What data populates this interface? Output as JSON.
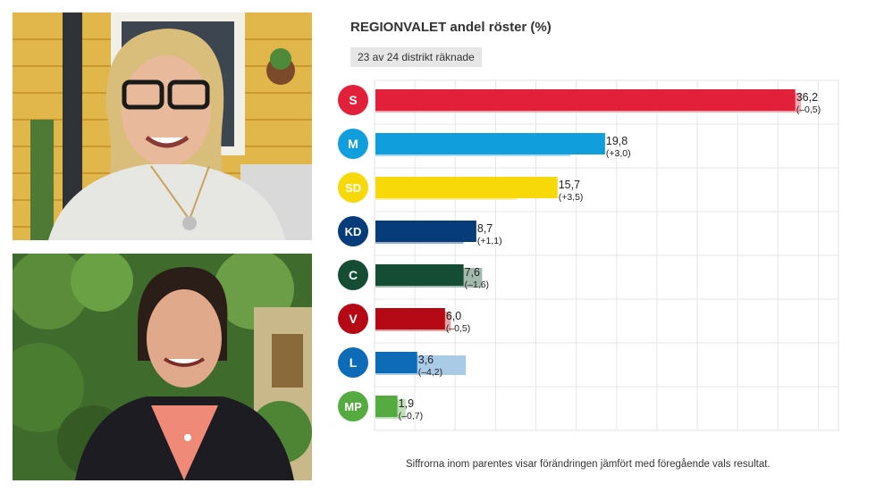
{
  "chart_data": {
    "type": "bar",
    "orientation": "horizontal",
    "title": "REGIONVALET andel röster (%)",
    "subtitle": "23 av 24 distrikt räknade",
    "footnote": "Siffrorna inom parentes visar förändringen jämfört med föregående vals resultat.",
    "xlim": [
      0,
      40
    ],
    "grid": true,
    "categories": [
      "S",
      "M",
      "SD",
      "KD",
      "C",
      "V",
      "L",
      "MP"
    ],
    "series": [
      {
        "name": "current",
        "values": [
          36.2,
          19.8,
          15.7,
          8.7,
          7.6,
          6.0,
          3.6,
          1.9
        ]
      },
      {
        "name": "previous",
        "values": [
          36.7,
          16.8,
          12.2,
          7.6,
          9.2,
          6.5,
          7.8,
          2.6
        ]
      }
    ],
    "value_labels": [
      "36,2",
      "19,8",
      "15,7",
      "8,7",
      "7,6",
      "6,0",
      "3,6",
      "1,9"
    ],
    "change_labels": [
      "(–0,5)",
      "(+3,0)",
      "(+3,5)",
      "(+1,1)",
      "(–1,6)",
      "(–0,5)",
      "(–4,2)",
      "(–0,7)"
    ],
    "colors": [
      "#e3203a",
      "#109fdc",
      "#f7d90a",
      "#053c79",
      "#154c34",
      "#b50a15",
      "#0d6bb8",
      "#55ab40"
    ],
    "previous_colors": [
      "#f3a7b1",
      "#a9dcf2",
      "#fbeea0",
      "#9bb0c8",
      "#a3b9ad",
      "#e4a3a6",
      "#a9cbe6",
      "#bfdfb6"
    ],
    "badge_text_colors": [
      "#ffffff",
      "#ffffff",
      "#ffffff",
      "#ffffff",
      "#ffffff",
      "#ffffff",
      "#ffffff",
      "#ffffff"
    ]
  },
  "photos": {
    "top": "photo-woman-glasses",
    "bottom": "photo-woman-dark-jacket"
  }
}
